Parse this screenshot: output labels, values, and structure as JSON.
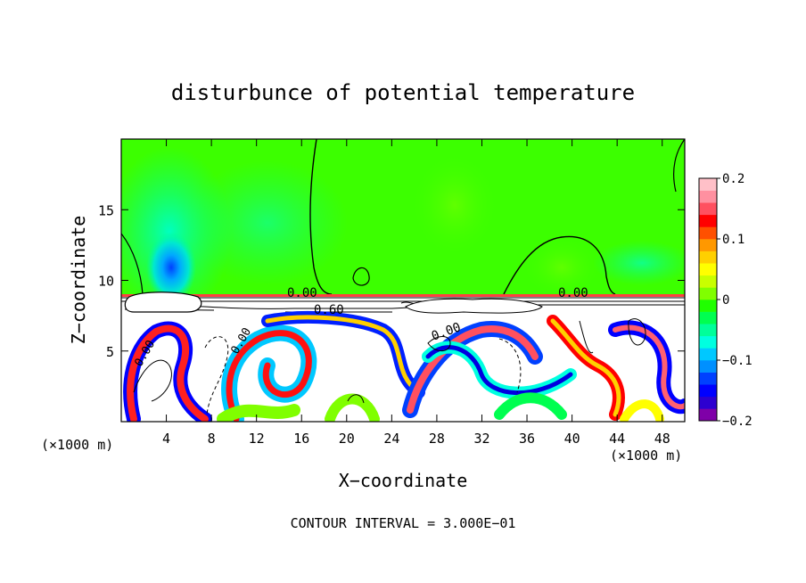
{
  "chart_data": {
    "type": "heatmap",
    "title": "disturbunce of potential temperature",
    "xlabel": "X−coordinate",
    "ylabel": "Z−coordinate",
    "x_unit_left": "(×1000 m)",
    "x_unit_right": "(×1000 m)",
    "footer": "CONTOUR INTERVAL = 3.000E−01",
    "xlim": [
      0,
      50
    ],
    "ylim": [
      0,
      20
    ],
    "xticks": [
      4,
      8,
      12,
      16,
      20,
      24,
      28,
      32,
      36,
      40,
      44,
      48
    ],
    "xtick_labels": [
      "4",
      "8",
      "12",
      "16",
      "20",
      "24",
      "28",
      "32",
      "36",
      "40",
      "44",
      "48"
    ],
    "yticks": [
      5,
      10,
      15
    ],
    "ytick_labels": [
      "5",
      "10",
      "15"
    ],
    "colorbar": {
      "min": -0.2,
      "max": 0.2,
      "ticks": [
        0.2,
        0.1,
        0,
        -0.1,
        -0.2
      ],
      "tick_labels": [
        "0.2",
        "0.1",
        "0",
        "−0.1",
        "−0.2"
      ],
      "colors": [
        "#7f00a8",
        "#2d00d0",
        "#0000ff",
        "#0040ff",
        "#0090ff",
        "#00c8ff",
        "#00ffe0",
        "#00ff9a",
        "#00ff50",
        "#20ff00",
        "#80ff00",
        "#c8ff00",
        "#ffff00",
        "#ffd000",
        "#ff9800",
        "#ff5000",
        "#ff0000",
        "#ff5060",
        "#ff90a0",
        "#ffc0c8"
      ]
    },
    "contour_labels": [
      "0.00",
      "0.60",
      "0.00",
      "0.00",
      "0.00",
      "0.00"
    ],
    "fields": {
      "upper_region": {
        "z_range": [
          9,
          20
        ],
        "value": 0.0,
        "note_color": "#00ff50"
      },
      "lower_region": {
        "z_range": [
          0,
          9
        ]
      }
    }
  }
}
